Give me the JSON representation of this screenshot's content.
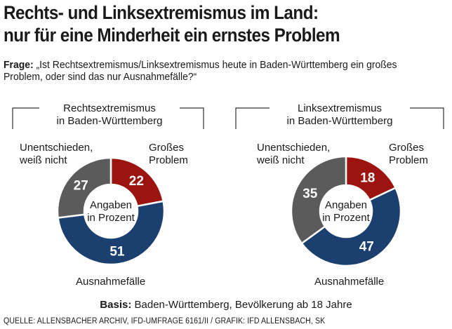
{
  "headline": {
    "line1": "Rechts- und Linksextremismus im Land:",
    "line2": "nur für eine Minderheit ein ernstes Problem"
  },
  "question": {
    "label": "Frage:",
    "text": "„Ist Rechtsextremismus/Linksextremismus heute in Baden-Württemberg ein großes Problem, oder sind das nur Ausnahmefälle?“"
  },
  "colors": {
    "gross": "#9b1410",
    "ausnahme": "#1b3f6e",
    "unentschieden": "#5b5b5b",
    "bracket": "#333333"
  },
  "chart_data": [
    {
      "type": "pie",
      "title_line1": "Rechtsextremismus",
      "title_line2": "in Baden-Württemberg",
      "center_line1": "Angaben",
      "center_line2": "in Prozent",
      "slices": [
        {
          "key": "gross",
          "label_line1": "Großes",
          "label_line2": "Problem",
          "value": 22
        },
        {
          "key": "ausnahme",
          "label_line1": "Ausnahmefälle",
          "label_line2": "",
          "value": 51
        },
        {
          "key": "unentschieden",
          "label_line1": "Unentschieden,",
          "label_line2": "weiß nicht",
          "value": 27
        }
      ]
    },
    {
      "type": "pie",
      "title_line1": "Linksextremismus",
      "title_line2": "in Baden-Württemberg",
      "center_line1": "Angaben",
      "center_line2": "in Prozent",
      "slices": [
        {
          "key": "gross",
          "label_line1": "Großes",
          "label_line2": "Problem",
          "value": 18
        },
        {
          "key": "ausnahme",
          "label_line1": "Ausnahmefälle",
          "label_line2": "",
          "value": 47
        },
        {
          "key": "unentschieden",
          "label_line1": "Unentschieden,",
          "label_line2": "weiß nicht",
          "value": 35
        }
      ]
    }
  ],
  "basis": {
    "label": "Basis:",
    "text": "Baden-Württemberg, Bevölkerung ab 18 Jahre"
  },
  "source": "QUELLE: ALLENSBACHER ARCHIV, IFD-UMFRAGE 6161/II  /  GRAFIK: IFD ALLENSBACH, SK"
}
